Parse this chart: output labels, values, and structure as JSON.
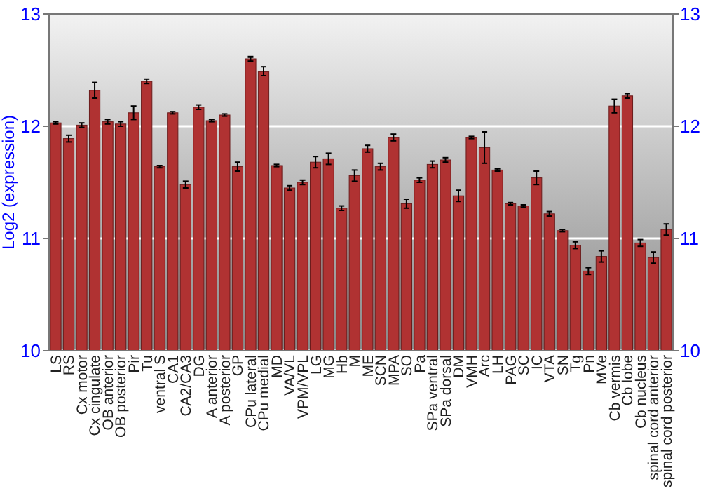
{
  "chart_data": {
    "type": "bar",
    "ylabel": "Log2 (expression)",
    "categories": [
      "LS",
      "RS",
      "Cx motor",
      "Cx cingulate",
      "OB anterior",
      "OB posterior",
      "Pir",
      "Tu",
      "ventral S",
      "CA1",
      "CA2/CA3",
      "DG",
      "A anterior",
      "A posterior",
      "GP",
      "CPu lateral",
      "CPu medial",
      "MD",
      "VA/VL",
      "VPM/VPL",
      "LG",
      "MG",
      "Hb",
      "M",
      "ME",
      "SCN",
      "MPA",
      "SO",
      "Pa",
      "SPa ventral",
      "SPa dorsal",
      "DM",
      "VMH",
      "Arc",
      "LH",
      "PAG",
      "SC",
      "IC",
      "VTA",
      "SN",
      "Tg",
      "Pn",
      "MVe",
      "Cb vermis",
      "Cb lobe",
      "Cb nucleus",
      "spinal cord anterior",
      "spinal cord posterior"
    ],
    "values": [
      12.03,
      11.89,
      12.01,
      12.32,
      12.04,
      12.02,
      12.12,
      12.4,
      11.64,
      12.12,
      11.48,
      12.17,
      12.05,
      12.1,
      11.64,
      12.6,
      12.49,
      11.65,
      11.45,
      11.5,
      11.68,
      11.71,
      11.27,
      11.56,
      11.8,
      11.64,
      11.9,
      11.31,
      11.52,
      11.66,
      11.7,
      11.38,
      11.9,
      11.81,
      11.61,
      11.31,
      11.29,
      11.54,
      11.22,
      11.07,
      10.94,
      10.71,
      10.84,
      12.18,
      12.27,
      10.96,
      10.83,
      11.08
    ],
    "errors": [
      0.01,
      0.03,
      0.02,
      0.07,
      0.02,
      0.02,
      0.06,
      0.02,
      0.01,
      0.01,
      0.03,
      0.02,
      0.01,
      0.01,
      0.04,
      0.02,
      0.04,
      0.01,
      0.02,
      0.02,
      0.05,
      0.05,
      0.02,
      0.05,
      0.03,
      0.03,
      0.03,
      0.04,
      0.02,
      0.03,
      0.02,
      0.05,
      0.01,
      0.14,
      0.01,
      0.01,
      0.01,
      0.06,
      0.02,
      0.01,
      0.03,
      0.03,
      0.05,
      0.06,
      0.02,
      0.03,
      0.05,
      0.05
    ],
    "color": "#b03232",
    "ylim": [
      10,
      13
    ],
    "yticks": [
      10,
      11,
      12,
      13
    ],
    "y2lim": [
      10,
      13
    ],
    "y2ticks": [
      10,
      11,
      12,
      13
    ],
    "grid": "y"
  }
}
